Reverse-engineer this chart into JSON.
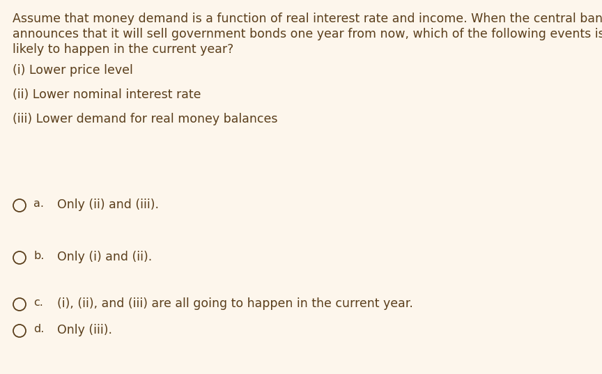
{
  "background_color": "#fdf6ec",
  "text_color": "#5a3e1b",
  "question_lines": [
    "Assume that money demand is a function of real interest rate and income. When the central bank",
    "announces that it will sell government bonds one year from now, which of the following events is/are",
    "likely to happen in the current year?"
  ],
  "items": [
    "(i) Lower price level",
    "(ii) Lower nominal interest rate",
    "(iii) Lower demand for real money balances"
  ],
  "options": [
    {
      "label": "a.",
      "text": "Only (ii) and (iii)."
    },
    {
      "label": "b.",
      "text": "Only (i) and (ii)."
    },
    {
      "label": "c.",
      "text": "(i), (ii), and (iii) are all going to happen in the current year."
    },
    {
      "label": "d.",
      "text": "Only (iii)."
    }
  ],
  "question_fontsize": 12.5,
  "item_fontsize": 12.5,
  "option_fontsize": 12.5,
  "fig_width": 8.64,
  "fig_height": 5.37,
  "dpi": 100
}
